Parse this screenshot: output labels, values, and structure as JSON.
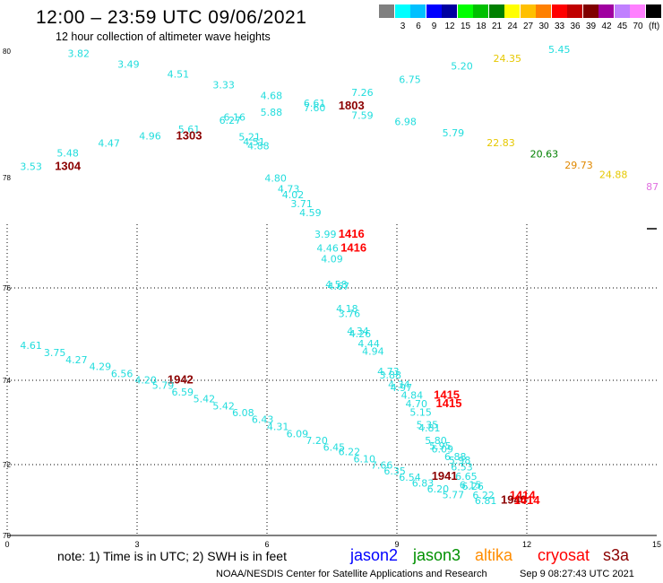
{
  "header": {
    "title": "12:00 – 23:59 UTC 09/06/2021",
    "subtitle": "12 hour collection of altimeter wave heights"
  },
  "colorbar": {
    "unit": "(ft)",
    "entries": [
      {
        "label": "",
        "color": "#808080"
      },
      {
        "label": "3",
        "color": "#00ffff"
      },
      {
        "label": "6",
        "color": "#00c0ff"
      },
      {
        "label": "9",
        "color": "#0000ff"
      },
      {
        "label": "12",
        "color": "#0000a0"
      },
      {
        "label": "15",
        "color": "#00ff00"
      },
      {
        "label": "18",
        "color": "#00c000"
      },
      {
        "label": "21",
        "color": "#008000"
      },
      {
        "label": "24",
        "color": "#ffff00"
      },
      {
        "label": "27",
        "color": "#ffc000"
      },
      {
        "label": "30",
        "color": "#ff8000"
      },
      {
        "label": "33",
        "color": "#ff0000"
      },
      {
        "label": "36",
        "color": "#c00000"
      },
      {
        "label": "39",
        "color": "#800000"
      },
      {
        "label": "42",
        "color": "#a000a0"
      },
      {
        "label": "45",
        "color": "#c080ff"
      },
      {
        "label": "70",
        "color": "#ff80ff"
      },
      {
        "label": "",
        "color": "#000000"
      }
    ]
  },
  "map": {
    "x_ticks": [
      "0",
      "3",
      "6",
      "9",
      "12",
      "15"
    ],
    "y_ticks": [
      "80",
      "78",
      "76",
      "74",
      "72",
      "70"
    ]
  },
  "observations": [
    {
      "text": "3.82",
      "x": 1.65,
      "y": 79.91,
      "color": "#22dddd"
    },
    {
      "text": "3.49",
      "x": 2.8,
      "y": 79.74,
      "color": "#22dddd"
    },
    {
      "text": "4.51",
      "x": 3.95,
      "y": 79.58,
      "color": "#22dddd"
    },
    {
      "text": "3.33",
      "x": 5.0,
      "y": 79.41,
      "color": "#22dddd"
    },
    {
      "text": "4.68",
      "x": 6.1,
      "y": 79.24,
      "color": "#22dddd"
    },
    {
      "text": "6.61",
      "x": 7.1,
      "y": 79.12,
      "color": "#22dddd"
    },
    {
      "text": "7.60",
      "x": 7.1,
      "y": 79.05,
      "color": "#22dddd"
    },
    {
      "text": "7.26",
      "x": 8.2,
      "y": 79.29,
      "color": "#22dddd"
    },
    {
      "text": "1803",
      "x": 7.95,
      "y": 79.08,
      "color": "#8b0000",
      "bold": true
    },
    {
      "text": "7.59",
      "x": 8.2,
      "y": 78.93,
      "color": "#22dddd"
    },
    {
      "text": "6.75",
      "x": 9.3,
      "y": 79.5,
      "color": "#22dddd"
    },
    {
      "text": "5.20",
      "x": 10.5,
      "y": 79.71,
      "color": "#22dddd"
    },
    {
      "text": "24.35",
      "x": 11.55,
      "y": 79.83,
      "color": "#e6c800"
    },
    {
      "text": "5.45",
      "x": 12.75,
      "y": 79.97,
      "color": "#22dddd"
    },
    {
      "text": "5.88",
      "x": 6.1,
      "y": 78.98,
      "color": "#22dddd"
    },
    {
      "text": "6.16",
      "x": 5.25,
      "y": 78.9,
      "color": "#22dddd"
    },
    {
      "text": "6.27",
      "x": 5.15,
      "y": 78.85,
      "color": "#22dddd"
    },
    {
      "text": "6.98",
      "x": 9.2,
      "y": 78.83,
      "color": "#22dddd"
    },
    {
      "text": "5.79",
      "x": 10.3,
      "y": 78.65,
      "color": "#22dddd"
    },
    {
      "text": "5.61",
      "x": 4.2,
      "y": 78.71,
      "color": "#22dddd"
    },
    {
      "text": "1303",
      "x": 4.2,
      "y": 78.6,
      "color": "#8b0000",
      "bold": true
    },
    {
      "text": "4.96",
      "x": 3.3,
      "y": 78.6,
      "color": "#22dddd"
    },
    {
      "text": "5.21",
      "x": 5.6,
      "y": 78.59,
      "color": "#22dddd"
    },
    {
      "text": "4.51",
      "x": 5.7,
      "y": 78.51,
      "color": "#22dddd"
    },
    {
      "text": "4.88",
      "x": 5.8,
      "y": 78.45,
      "color": "#22dddd"
    },
    {
      "text": "22.83",
      "x": 11.4,
      "y": 78.5,
      "color": "#e6c800"
    },
    {
      "text": "4.47",
      "x": 2.35,
      "y": 78.49,
      "color": "#22dddd"
    },
    {
      "text": "5.48",
      "x": 1.4,
      "y": 78.33,
      "color": "#22dddd"
    },
    {
      "text": "3.53",
      "x": 0.55,
      "y": 78.12,
      "color": "#22dddd"
    },
    {
      "text": "1304",
      "x": 1.4,
      "y": 78.12,
      "color": "#8b0000",
      "bold": true
    },
    {
      "text": "20.63",
      "x": 12.4,
      "y": 78.32,
      "color": "#008000"
    },
    {
      "text": "29.73",
      "x": 13.2,
      "y": 78.14,
      "color": "#e08800"
    },
    {
      "text": "24.88",
      "x": 14.0,
      "y": 77.99,
      "color": "#e6c800"
    },
    {
      "text": "87",
      "x": 14.9,
      "y": 77.77,
      "color": "#e070e0"
    },
    {
      "text": "4.80",
      "x": 6.2,
      "y": 77.93,
      "color": "#22dddd"
    },
    {
      "text": "4.73",
      "x": 6.5,
      "y": 77.73,
      "color": "#22dddd"
    },
    {
      "text": "4.02",
      "x": 6.6,
      "y": 77.63,
      "color": "#22dddd"
    },
    {
      "text": "3.71",
      "x": 6.8,
      "y": 77.46,
      "color": "#22dddd"
    },
    {
      "text": "4.59",
      "x": 7.0,
      "y": 77.3,
      "color": "#22dddd"
    },
    {
      "text": "3.99",
      "x": 7.35,
      "y": 76.91,
      "color": "#22dddd"
    },
    {
      "text": "1416",
      "x": 7.95,
      "y": 76.91,
      "color": "#ff0000",
      "bold": true
    },
    {
      "text": "4.46",
      "x": 7.4,
      "y": 76.66,
      "color": "#22dddd"
    },
    {
      "text": "1416",
      "x": 8.0,
      "y": 76.66,
      "color": "#ff0000",
      "bold": true
    },
    {
      "text": "4.09",
      "x": 7.5,
      "y": 76.46,
      "color": "#22dddd"
    },
    {
      "text": "4.58",
      "x": 7.6,
      "y": 76.0,
      "color": "#22dddd"
    },
    {
      "text": "4.67",
      "x": 7.65,
      "y": 75.96,
      "color": "#22dddd"
    },
    {
      "text": "4.18",
      "x": 7.85,
      "y": 75.48,
      "color": "#22dddd"
    },
    {
      "text": "3.76",
      "x": 7.9,
      "y": 75.37,
      "color": "#22dddd"
    },
    {
      "text": "4.34",
      "x": 8.1,
      "y": 74.99,
      "color": "#22dddd"
    },
    {
      "text": "4.26",
      "x": 8.15,
      "y": 74.93,
      "color": "#22dddd"
    },
    {
      "text": "4.44",
      "x": 8.35,
      "y": 74.72,
      "color": "#22dddd"
    },
    {
      "text": "4.94",
      "x": 8.45,
      "y": 74.55,
      "color": "#22dddd"
    },
    {
      "text": "4.73",
      "x": 8.8,
      "y": 74.12,
      "color": "#22dddd"
    },
    {
      "text": "3.88",
      "x": 8.85,
      "y": 74.04,
      "color": "#22dddd"
    },
    {
      "text": "4.34",
      "x": 9.05,
      "y": 73.82,
      "color": "#22dddd"
    },
    {
      "text": "4.97",
      "x": 9.1,
      "y": 73.75,
      "color": "#22dddd"
    },
    {
      "text": "4.61",
      "x": 0.55,
      "y": 74.68,
      "color": "#22dddd"
    },
    {
      "text": "3.75",
      "x": 1.1,
      "y": 74.52,
      "color": "#22dddd"
    },
    {
      "text": "4.27",
      "x": 1.6,
      "y": 74.37,
      "color": "#22dddd"
    },
    {
      "text": "4.29",
      "x": 2.15,
      "y": 74.22,
      "color": "#22dddd"
    },
    {
      "text": "6.56",
      "x": 2.65,
      "y": 74.07,
      "color": "#22dddd"
    },
    {
      "text": "4.20",
      "x": 3.2,
      "y": 73.93,
      "color": "#22dddd"
    },
    {
      "text": "1942",
      "x": 4.0,
      "y": 73.93,
      "color": "#8b0000",
      "bold": true
    },
    {
      "text": "5.79",
      "x": 3.6,
      "y": 73.8,
      "color": "#22dddd"
    },
    {
      "text": "6.59",
      "x": 4.05,
      "y": 73.64,
      "color": "#22dddd"
    },
    {
      "text": "5.42",
      "x": 4.55,
      "y": 73.48,
      "color": "#22dddd"
    },
    {
      "text": "5.42",
      "x": 5.0,
      "y": 73.31,
      "color": "#22dddd"
    },
    {
      "text": "6.08",
      "x": 5.45,
      "y": 73.15,
      "color": "#22dddd"
    },
    {
      "text": "6.43",
      "x": 5.9,
      "y": 72.99,
      "color": "#22dddd"
    },
    {
      "text": "4.31",
      "x": 6.25,
      "y": 72.82,
      "color": "#22dddd"
    },
    {
      "text": "6.09",
      "x": 6.7,
      "y": 72.65,
      "color": "#22dddd"
    },
    {
      "text": "7.20",
      "x": 7.15,
      "y": 72.49,
      "color": "#22dddd"
    },
    {
      "text": "6.45",
      "x": 7.55,
      "y": 72.33,
      "color": "#22dddd"
    },
    {
      "text": "6.22",
      "x": 7.9,
      "y": 72.22,
      "color": "#22dddd"
    },
    {
      "text": "6.10",
      "x": 8.25,
      "y": 72.05,
      "color": "#22dddd"
    },
    {
      "text": "7.66",
      "x": 8.65,
      "y": 71.88,
      "color": "#22dddd"
    },
    {
      "text": "6.35",
      "x": 8.95,
      "y": 71.72,
      "color": "#22dddd"
    },
    {
      "text": "6.54",
      "x": 9.3,
      "y": 71.55,
      "color": "#22dddd"
    },
    {
      "text": "6.83",
      "x": 9.6,
      "y": 71.38,
      "color": "#22dddd"
    },
    {
      "text": "6.20",
      "x": 9.95,
      "y": 71.22,
      "color": "#22dddd"
    },
    {
      "text": "5.77",
      "x": 10.3,
      "y": 71.05,
      "color": "#22dddd"
    },
    {
      "text": "4.84",
      "x": 9.35,
      "y": 73.56,
      "color": "#22dddd"
    },
    {
      "text": "1415",
      "x": 10.15,
      "y": 73.56,
      "color": "#ff0000",
      "bold": true
    },
    {
      "text": "4.70",
      "x": 9.45,
      "y": 73.36,
      "color": "#22dddd"
    },
    {
      "text": "1415",
      "x": 10.2,
      "y": 73.36,
      "color": "#ff0000",
      "bold": true
    },
    {
      "text": "5.15",
      "x": 9.55,
      "y": 73.16,
      "color": "#22dddd"
    },
    {
      "text": "5.35",
      "x": 9.7,
      "y": 72.86,
      "color": "#22dddd"
    },
    {
      "text": "4.81",
      "x": 9.75,
      "y": 72.79,
      "color": "#22dddd"
    },
    {
      "text": "5.80",
      "x": 9.9,
      "y": 72.49,
      "color": "#22dddd"
    },
    {
      "text": "5.95",
      "x": 10.0,
      "y": 72.36,
      "color": "#22dddd"
    },
    {
      "text": "6.09",
      "x": 10.05,
      "y": 72.29,
      "color": "#22dddd"
    },
    {
      "text": "6.88",
      "x": 10.35,
      "y": 72.11,
      "color": "#22dddd"
    },
    {
      "text": "5.98",
      "x": 10.45,
      "y": 72.02,
      "color": "#22dddd"
    },
    {
      "text": "6.53",
      "x": 10.5,
      "y": 71.83,
      "color": "#22dddd"
    },
    {
      "text": "1941",
      "x": 10.1,
      "y": 71.57,
      "color": "#8b0000",
      "bold": true
    },
    {
      "text": "6.65",
      "x": 10.6,
      "y": 71.57,
      "color": "#22dddd"
    },
    {
      "text": "6.15",
      "x": 10.7,
      "y": 71.33,
      "color": "#22dddd"
    },
    {
      "text": "6.26",
      "x": 10.75,
      "y": 71.29,
      "color": "#22dddd"
    },
    {
      "text": "6.22",
      "x": 11.0,
      "y": 71.04,
      "color": "#22dddd"
    },
    {
      "text": "6.81",
      "x": 11.05,
      "y": 70.88,
      "color": "#22dddd"
    },
    {
      "text": "1414",
      "x": 11.9,
      "y": 71.02,
      "color": "#ff0000",
      "bold": true
    },
    {
      "text": "1940",
      "x": 11.7,
      "y": 70.9,
      "color": "#8b0000",
      "bold": true
    },
    {
      "text": "1414",
      "x": 12.0,
      "y": 70.88,
      "color": "#ff0000",
      "bold": true
    }
  ],
  "footer": {
    "note": "note:  1) Time is in UTC;  2) SWH is in feet",
    "satellites": [
      {
        "name": "jason2",
        "color": "#0000ff"
      },
      {
        "name": "jason3",
        "color": "#009000"
      },
      {
        "name": "altika",
        "color": "#ff8c00"
      },
      {
        "name": "cryosat",
        "color": "#ff0000"
      },
      {
        "name": "s3a",
        "color": "#8b0000"
      }
    ],
    "credit": "NOAA/NESDIS Center for Satellite Applications and Research",
    "date": "Sep  9 08:27:43 UTC 2021"
  }
}
